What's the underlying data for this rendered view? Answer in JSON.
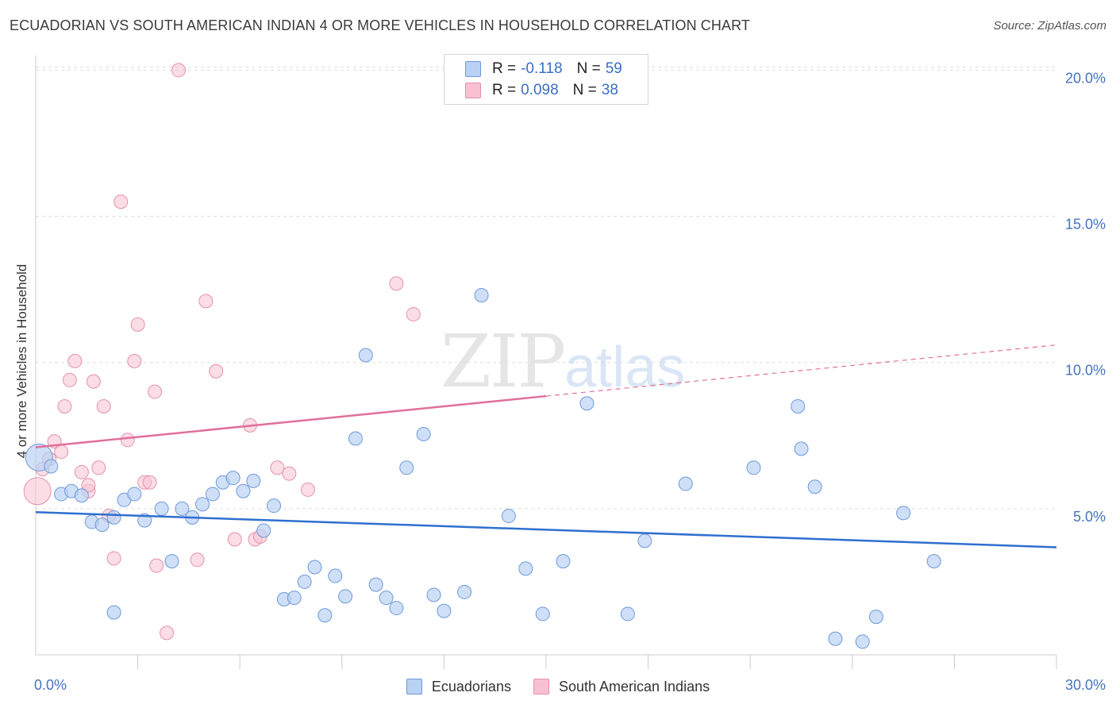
{
  "title": "ECUADORIAN VS SOUTH AMERICAN INDIAN 4 OR MORE VEHICLES IN HOUSEHOLD CORRELATION CHART",
  "source": "Source: ZipAtlas.com",
  "watermark": {
    "zip": "ZIP",
    "atlas": "atlas"
  },
  "legend_top": [
    {
      "r_label": "R =",
      "r_value": "-0.118",
      "n_label": "N =",
      "n_value": "59"
    },
    {
      "r_label": "R =",
      "r_value": "0.098",
      "n_label": "N =",
      "n_value": "38"
    }
  ],
  "legend_bottom": [
    {
      "label": "Ecuadorians"
    },
    {
      "label": "South American Indians"
    }
  ],
  "colors": {
    "blue_fill": "#b9d1f3",
    "blue_stroke": "#6f9ad8",
    "blue_line": "#2f6fcf",
    "pink_fill": "#f7c1d1",
    "pink_stroke": "#e591ac",
    "pink_line": "#e0709a",
    "tick_text": "#4472c4",
    "grid": "#dddddd"
  },
  "chart_data": {
    "type": "scatter",
    "title": "ECUADORIAN VS SOUTH AMERICAN INDIAN 4 OR MORE VEHICLES IN HOUSEHOLD CORRELATION CHART",
    "xlabel": "",
    "ylabel": "4 or more Vehicles in Household",
    "xlim": [
      0,
      30
    ],
    "ylim": [
      0,
      20.5
    ],
    "x_tick_labels": [
      "0.0%",
      "30.0%"
    ],
    "y_ticks": [
      5,
      10,
      15,
      20
    ],
    "y_tick_labels": [
      "5.0%",
      "10.0%",
      "15.0%",
      "20.0%"
    ],
    "grid": true,
    "legend_position": "top-center",
    "series": [
      {
        "name": "Ecuadorians",
        "color": "#b9d1f3",
        "trend": {
          "x0": 0,
          "y0": 4.88,
          "x1": 30,
          "y1": 3.68
        },
        "points": [
          [
            0.1,
            6.75
          ],
          [
            0.45,
            6.45
          ],
          [
            0.75,
            5.5
          ],
          [
            1.05,
            5.6
          ],
          [
            1.35,
            5.45
          ],
          [
            1.65,
            4.55
          ],
          [
            1.95,
            4.45
          ],
          [
            2.3,
            4.7
          ],
          [
            2.6,
            5.3
          ],
          [
            2.9,
            5.5
          ],
          [
            3.2,
            4.6
          ],
          [
            3.7,
            5.0
          ],
          [
            4.0,
            3.2
          ],
          [
            4.3,
            5.0
          ],
          [
            4.6,
            4.7
          ],
          [
            4.9,
            5.15
          ],
          [
            5.2,
            5.5
          ],
          [
            5.5,
            5.9
          ],
          [
            5.8,
            6.05
          ],
          [
            6.1,
            5.6
          ],
          [
            6.4,
            5.95
          ],
          [
            6.7,
            4.25
          ],
          [
            7.0,
            5.1
          ],
          [
            7.3,
            1.9
          ],
          [
            7.6,
            1.95
          ],
          [
            7.9,
            2.5
          ],
          [
            8.2,
            3.0
          ],
          [
            8.5,
            1.35
          ],
          [
            8.8,
            2.7
          ],
          [
            9.1,
            2.0
          ],
          [
            9.4,
            7.4
          ],
          [
            9.7,
            10.25
          ],
          [
            10.0,
            2.4
          ],
          [
            10.3,
            1.95
          ],
          [
            10.6,
            1.6
          ],
          [
            10.9,
            6.4
          ],
          [
            11.4,
            7.55
          ],
          [
            11.7,
            2.05
          ],
          [
            12.0,
            1.5
          ],
          [
            12.6,
            2.15
          ],
          [
            13.1,
            12.3
          ],
          [
            13.9,
            4.75
          ],
          [
            14.4,
            2.95
          ],
          [
            14.9,
            1.4
          ],
          [
            15.5,
            3.2
          ],
          [
            16.2,
            8.6
          ],
          [
            17.4,
            1.4
          ],
          [
            17.9,
            3.9
          ],
          [
            19.1,
            5.85
          ],
          [
            21.1,
            6.4
          ],
          [
            22.4,
            8.5
          ],
          [
            22.5,
            7.05
          ],
          [
            22.9,
            5.75
          ],
          [
            23.5,
            0.55
          ],
          [
            24.3,
            0.45
          ],
          [
            24.7,
            1.3
          ],
          [
            25.5,
            4.85
          ],
          [
            26.4,
            3.2
          ],
          [
            2.3,
            1.45
          ]
        ]
      },
      {
        "name": "South American Indians",
        "color": "#f7c1d1",
        "trend": {
          "x0": 0,
          "y0": 7.1,
          "x1": 30,
          "y1": 10.6,
          "solid_until_x": 15
        },
        "points": [
          [
            0.05,
            5.6
          ],
          [
            0.2,
            6.35
          ],
          [
            0.4,
            6.7
          ],
          [
            0.55,
            7.3
          ],
          [
            0.75,
            6.95
          ],
          [
            0.85,
            8.5
          ],
          [
            1.0,
            9.4
          ],
          [
            1.15,
            10.05
          ],
          [
            1.35,
            6.25
          ],
          [
            1.55,
            5.6
          ],
          [
            1.7,
            9.35
          ],
          [
            1.85,
            6.4
          ],
          [
            2.0,
            8.5
          ],
          [
            2.15,
            4.75
          ],
          [
            2.3,
            3.3
          ],
          [
            2.5,
            15.5
          ],
          [
            2.7,
            7.35
          ],
          [
            2.9,
            10.05
          ],
          [
            3.0,
            11.3
          ],
          [
            3.2,
            5.9
          ],
          [
            3.35,
            5.9
          ],
          [
            3.5,
            9.0
          ],
          [
            3.55,
            3.05
          ],
          [
            3.85,
            0.75
          ],
          [
            4.2,
            20.0
          ],
          [
            4.75,
            3.25
          ],
          [
            5.0,
            12.1
          ],
          [
            5.3,
            9.7
          ],
          [
            5.85,
            3.95
          ],
          [
            6.3,
            7.85
          ],
          [
            6.45,
            3.95
          ],
          [
            6.6,
            4.05
          ],
          [
            7.1,
            6.4
          ],
          [
            7.45,
            6.2
          ],
          [
            8.0,
            5.65
          ],
          [
            10.6,
            12.7
          ],
          [
            11.1,
            11.65
          ],
          [
            1.55,
            5.8
          ]
        ]
      }
    ]
  }
}
